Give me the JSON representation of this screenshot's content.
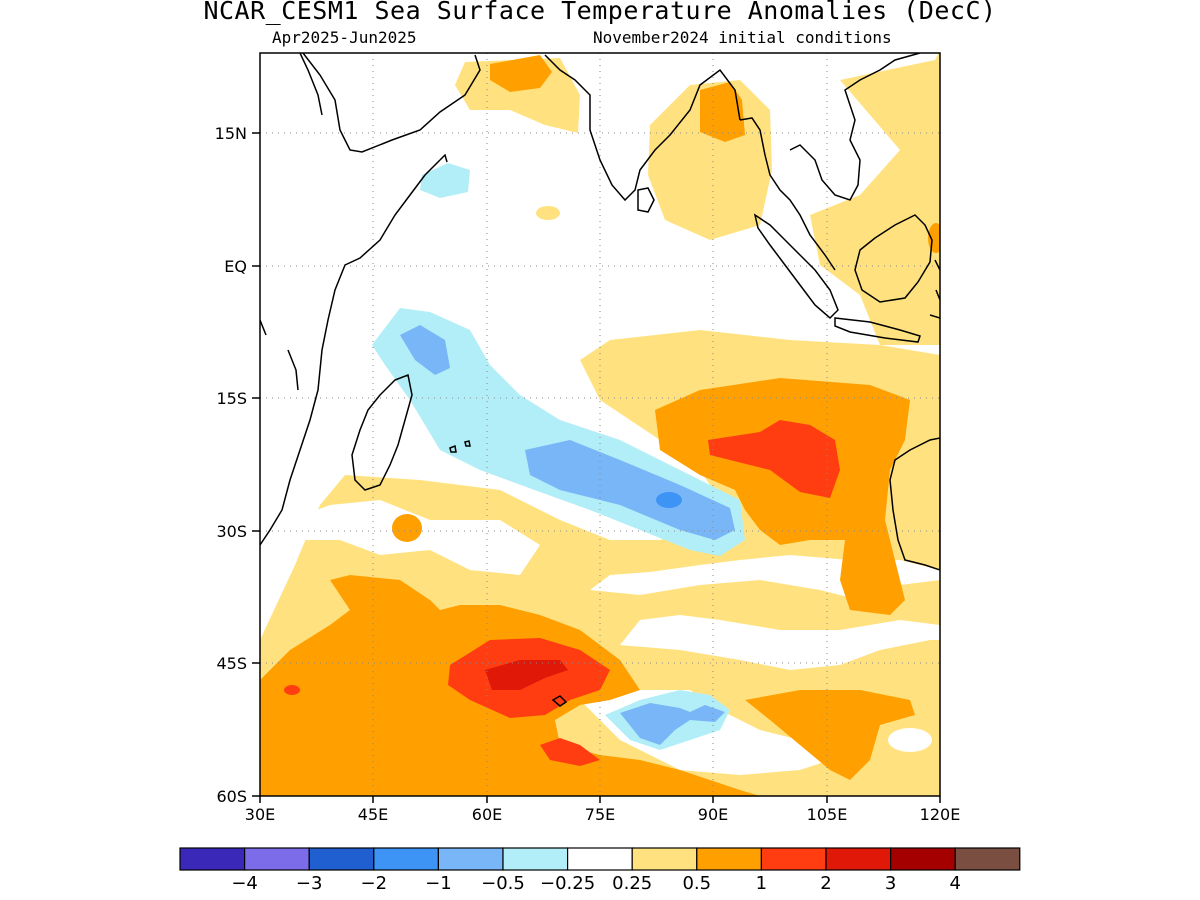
{
  "title": "NCAR_CESM1 Sea Surface Temperature Anomalies (DecC)",
  "subtitle_left": "Apr2025-Jun2025",
  "subtitle_right": "November2024 initial conditions",
  "map": {
    "lon_range": [
      30,
      120
    ],
    "lat_range": [
      -60,
      24
    ],
    "grid": true,
    "lat_ticks": [
      {
        "value": 15,
        "label": "15N"
      },
      {
        "value": 0,
        "label": "EQ"
      },
      {
        "value": -15,
        "label": "15S"
      },
      {
        "value": -30,
        "label": "30S"
      },
      {
        "value": -45,
        "label": "45S"
      },
      {
        "value": -60,
        "label": "60S"
      }
    ],
    "lon_ticks": [
      {
        "value": 30,
        "label": "30E"
      },
      {
        "value": 45,
        "label": "45E"
      },
      {
        "value": 60,
        "label": "60E"
      },
      {
        "value": 75,
        "label": "75E"
      },
      {
        "value": 90,
        "label": "90E"
      },
      {
        "value": 105,
        "label": "105E"
      },
      {
        "value": 120,
        "label": "120E"
      }
    ]
  },
  "colorbar": {
    "colors": [
      "#3a28b8",
      "#7c6cea",
      "#1f5fd0",
      "#3d94f5",
      "#78b6f7",
      "#b2eef7",
      "#ffffff",
      "#ffe27f",
      "#ffa000",
      "#ff3d10",
      "#e01808",
      "#a50000",
      "#7a4e40"
    ],
    "labels": [
      "-4",
      "-3",
      "-2",
      "-1",
      "-0.5",
      "-0.25",
      "0.25",
      "0.5",
      "1",
      "2",
      "3",
      "4"
    ]
  },
  "anomaly_regions": [
    {
      "level": "0.5",
      "color": "#ffe27f"
    },
    {
      "level": "1",
      "color": "#ffa000"
    },
    {
      "level": "2",
      "color": "#ff3d10"
    },
    {
      "level": "3",
      "color": "#e01808"
    },
    {
      "level": "-0.25",
      "color": "#b2eef7"
    },
    {
      "level": "-0.5",
      "color": "#78b6f7"
    },
    {
      "level": "-1",
      "color": "#3d94f5"
    }
  ]
}
